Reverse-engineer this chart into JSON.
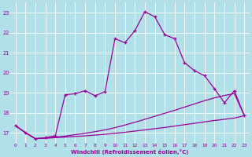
{
  "bg_color": "#b2e0e8",
  "grid_color": "#d0eaf0",
  "line_color": "#990099",
  "xlim": [
    -0.5,
    23.5
  ],
  "ylim": [
    16.5,
    23.5
  ],
  "yticks": [
    17,
    18,
    19,
    20,
    21,
    22,
    23
  ],
  "xticks": [
    0,
    1,
    2,
    3,
    4,
    5,
    6,
    7,
    8,
    9,
    10,
    11,
    12,
    13,
    14,
    15,
    16,
    17,
    18,
    19,
    20,
    21,
    22,
    23
  ],
  "xlabel": "Windchill (Refroidissement éolien,°C)",
  "line1_x": [
    0,
    1,
    2,
    3,
    4,
    5,
    6,
    7,
    8,
    9,
    10,
    11,
    12,
    13,
    14,
    15,
    16,
    17,
    18,
    19,
    20,
    21,
    22,
    23
  ],
  "line1_y": [
    17.35,
    17.0,
    16.7,
    16.75,
    16.85,
    18.9,
    18.95,
    19.1,
    18.85,
    19.05,
    21.7,
    21.5,
    22.1,
    23.05,
    22.8,
    21.9,
    21.7,
    20.5,
    20.1,
    19.85,
    19.2,
    18.5,
    19.1,
    17.85
  ],
  "line2_x": [
    0,
    1,
    2,
    3,
    4,
    5,
    6,
    7,
    8,
    9,
    10,
    11,
    12,
    13,
    14,
    15,
    16,
    17,
    18,
    19,
    20,
    21,
    22,
    23
  ],
  "line2_y": [
    17.35,
    17.0,
    16.7,
    16.72,
    16.75,
    16.78,
    16.81,
    16.84,
    16.88,
    16.92,
    16.97,
    17.02,
    17.08,
    17.14,
    17.2,
    17.26,
    17.33,
    17.4,
    17.47,
    17.54,
    17.61,
    17.67,
    17.73,
    17.85
  ],
  "line3_x": [
    0,
    1,
    2,
    3,
    4,
    5,
    6,
    7,
    8,
    9,
    10,
    11,
    12,
    13,
    14,
    15,
    16,
    17,
    18,
    19,
    20,
    21,
    22,
    23
  ],
  "line3_y": [
    17.35,
    17.0,
    16.7,
    16.73,
    16.78,
    16.83,
    16.9,
    16.97,
    17.05,
    17.14,
    17.25,
    17.38,
    17.52,
    17.67,
    17.82,
    17.97,
    18.12,
    18.28,
    18.44,
    18.6,
    18.74,
    18.86,
    18.96,
    17.85
  ]
}
